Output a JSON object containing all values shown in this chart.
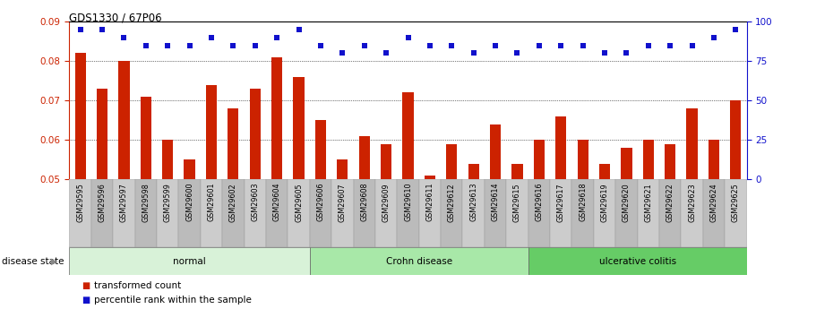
{
  "title": "GDS1330 / 67P06",
  "samples": [
    "GSM29595",
    "GSM29596",
    "GSM29597",
    "GSM29598",
    "GSM29599",
    "GSM29600",
    "GSM29601",
    "GSM29602",
    "GSM29603",
    "GSM29604",
    "GSM29605",
    "GSM29606",
    "GSM29607",
    "GSM29608",
    "GSM29609",
    "GSM29610",
    "GSM29611",
    "GSM29612",
    "GSM29613",
    "GSM29614",
    "GSM29615",
    "GSM29616",
    "GSM29617",
    "GSM29618",
    "GSM29619",
    "GSM29620",
    "GSM29621",
    "GSM29622",
    "GSM29623",
    "GSM29624",
    "GSM29625"
  ],
  "bar_values": [
    0.082,
    0.073,
    0.08,
    0.071,
    0.06,
    0.055,
    0.074,
    0.068,
    0.073,
    0.081,
    0.076,
    0.065,
    0.055,
    0.061,
    0.059,
    0.072,
    0.051,
    0.059,
    0.054,
    0.064,
    0.054,
    0.06,
    0.066,
    0.06,
    0.054,
    0.058,
    0.06,
    0.059,
    0.068,
    0.06,
    0.07
  ],
  "percentile_values": [
    95,
    95,
    90,
    85,
    85,
    85,
    90,
    85,
    85,
    90,
    95,
    85,
    80,
    85,
    80,
    90,
    85,
    85,
    80,
    85,
    80,
    85,
    85,
    85,
    80,
    80,
    85,
    85,
    85,
    90,
    95
  ],
  "bar_color": "#cc2200",
  "dot_color": "#1111cc",
  "ylim_left": [
    0.05,
    0.09
  ],
  "ylim_right": [
    0,
    100
  ],
  "yticks_left": [
    0.05,
    0.06,
    0.07,
    0.08,
    0.09
  ],
  "yticks_right": [
    0,
    25,
    50,
    75,
    100
  ],
  "groups": [
    {
      "label": "normal",
      "start": 0,
      "end": 10,
      "color": "#d8f2d8"
    },
    {
      "label": "Crohn disease",
      "start": 11,
      "end": 20,
      "color": "#a8e8a8"
    },
    {
      "label": "ulcerative colitis",
      "start": 21,
      "end": 30,
      "color": "#66cc66"
    }
  ],
  "disease_state_label": "disease state",
  "legend_bar_label": "transformed count",
  "legend_dot_label": "percentile rank within the sample",
  "background_color": "#ffffff",
  "tick_color_left": "#cc2200",
  "tick_color_right": "#1111cc",
  "gray_bg": "#c8c8c8",
  "spine_color": "#000000"
}
